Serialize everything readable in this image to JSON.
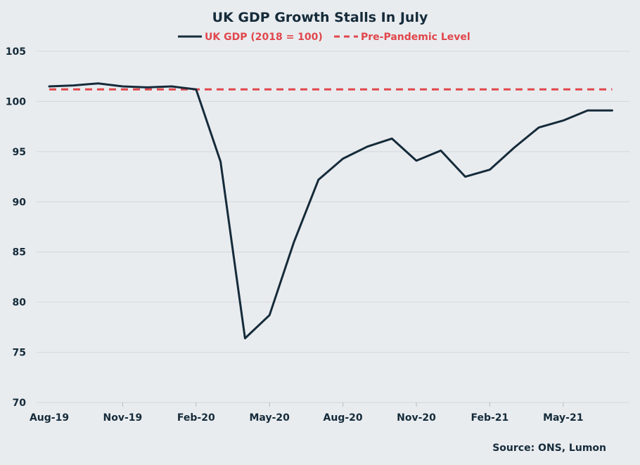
{
  "chart_data": {
    "type": "line",
    "title": "UK GDP Growth Stalls In July",
    "source": "Source: ONS, Lumon",
    "ylim": [
      70,
      105
    ],
    "yticks": [
      70,
      75,
      80,
      85,
      90,
      95,
      100,
      105
    ],
    "x": [
      "Aug-19",
      "Sep-19",
      "Oct-19",
      "Nov-19",
      "Dec-19",
      "Jan-20",
      "Feb-20",
      "Mar-20",
      "Apr-20",
      "May-20",
      "Jun-20",
      "Jul-20",
      "Aug-20",
      "Sep-20",
      "Oct-20",
      "Nov-20",
      "Dec-20",
      "Jan-21",
      "Feb-21",
      "Mar-21",
      "Apr-21",
      "May-21",
      "Jun-21",
      "Jul-21"
    ],
    "xtick_labels": [
      "Aug-19",
      "Nov-19",
      "Feb-20",
      "May-20",
      "Aug-20",
      "Nov-20",
      "Feb-21",
      "May-21"
    ],
    "grid": true,
    "legend_position": "top-center",
    "series": [
      {
        "name": "UK GDP (2018 = 100)",
        "color": "#152b3a",
        "style": "solid",
        "values": [
          101.5,
          101.6,
          101.8,
          101.5,
          101.4,
          101.5,
          101.2,
          94.0,
          76.4,
          78.7,
          86.0,
          92.2,
          94.3,
          95.5,
          96.3,
          94.1,
          95.1,
          92.5,
          93.2,
          95.4,
          97.4,
          98.1,
          99.1,
          99.1
        ]
      },
      {
        "name": "Pre-Pandemic Level",
        "color": "#e0474c",
        "style": "dashed",
        "values": [
          101.2,
          101.2,
          101.2,
          101.2,
          101.2,
          101.2,
          101.2,
          101.2,
          101.2,
          101.2,
          101.2,
          101.2,
          101.2,
          101.2,
          101.2,
          101.2,
          101.2,
          101.2,
          101.2,
          101.2,
          101.2,
          101.2,
          101.2,
          101.2
        ]
      }
    ]
  }
}
